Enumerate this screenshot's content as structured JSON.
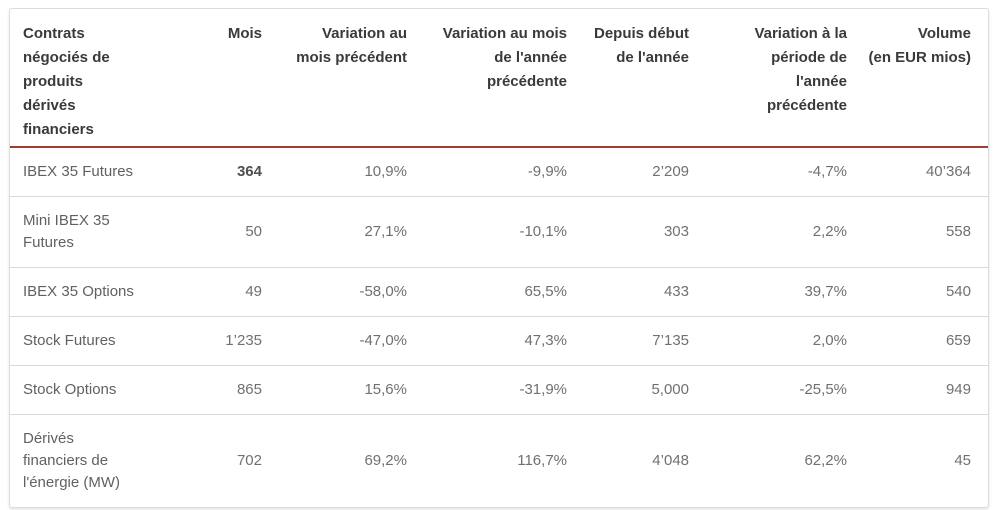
{
  "chart_data": {
    "type": "table",
    "columns": [
      "Contrats\nnégociés de\nproduits\ndérivés\nfinanciers",
      "Mois",
      "Variation au\nmois précédent",
      "Variation au mois\nde l'année\nprécédente",
      "Depuis début\nde l'année",
      "Variation à la\npériode de\nl'année\nprécédente",
      "Volume\n(en EUR mios)"
    ],
    "rows": [
      {
        "mois_bold": true,
        "cells": [
          "IBEX 35 Futures",
          "364",
          "10,9%",
          "-9,9%",
          "2’209",
          "-4,7%",
          "40’364"
        ]
      },
      {
        "cells": [
          "Mini IBEX 35 Futures",
          "50",
          "27,1%",
          "-10,1%",
          "303",
          "2,2%",
          "558"
        ]
      },
      {
        "cells": [
          "IBEX 35 Options",
          "49",
          "-58,0%",
          "65,5%",
          "433",
          "39,7%",
          "540"
        ]
      },
      {
        "cells": [
          "Stock Futures",
          "1’235",
          "-47,0%",
          "47,3%",
          "7’135",
          "2,0%",
          "659"
        ]
      },
      {
        "cells": [
          "Stock Options",
          "865",
          "15,6%",
          "-31,9%",
          "5,000",
          "-25,5%",
          "949"
        ]
      },
      {
        "cells": [
          "Dérivés financiers de l'énergie (MW)",
          "702",
          "69,2%",
          "116,7%",
          "4’048",
          "62,2%",
          "45"
        ]
      }
    ]
  },
  "colors": {
    "accent_rule": "#a03e32",
    "header_text": "#3a3a38",
    "body_text": "#6e7072",
    "row_divider": "#d9d9d9",
    "card_border": "#dcdcdc"
  }
}
